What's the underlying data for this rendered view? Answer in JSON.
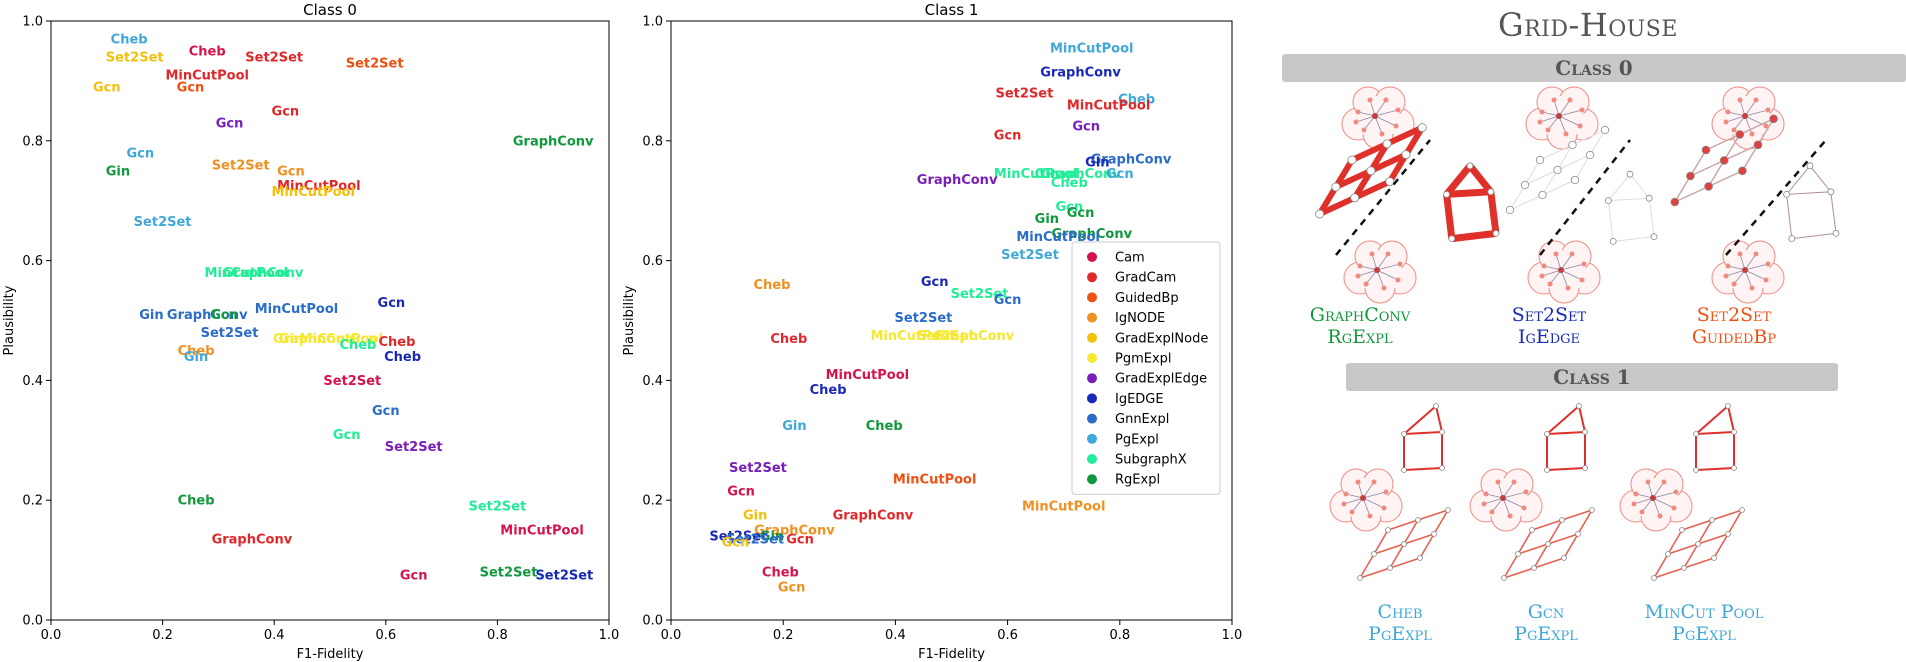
{
  "chart_data": [
    {
      "type": "scatter",
      "title": "Class 0",
      "xlabel": "F1-Fidelity",
      "ylabel": "Plausibility",
      "xlim": [
        0.0,
        1.0
      ],
      "ylim": [
        0.0,
        1.0
      ],
      "xticks": [
        "0.0",
        "0.2",
        "0.4",
        "0.6",
        "0.8",
        "1.0"
      ],
      "yticks": [
        "0.0",
        "0.2",
        "0.4",
        "0.6",
        "0.8",
        "1.0"
      ],
      "marker": "text-label",
      "points": [
        {
          "label": "Cheb",
          "method": "PgExpl",
          "x": 0.14,
          "y": 0.97
        },
        {
          "label": "Set2Set",
          "method": "GradExplNode",
          "x": 0.15,
          "y": 0.94
        },
        {
          "label": "Cheb",
          "method": "Cam",
          "x": 0.28,
          "y": 0.95
        },
        {
          "label": "Set2Set",
          "method": "GradCam",
          "x": 0.4,
          "y": 0.94
        },
        {
          "label": "Set2Set",
          "method": "GuidedBp",
          "x": 0.58,
          "y": 0.93
        },
        {
          "label": "Gcn",
          "method": "GradExplNode",
          "x": 0.1,
          "y": 0.89
        },
        {
          "label": "MinCutPool",
          "method": "GradCam",
          "x": 0.28,
          "y": 0.91
        },
        {
          "label": "Gcn",
          "method": "GuidedBp",
          "x": 0.25,
          "y": 0.89
        },
        {
          "label": "Gcn",
          "method": "GradCam",
          "x": 0.42,
          "y": 0.85
        },
        {
          "label": "Gcn",
          "method": "GradExplEdge",
          "x": 0.32,
          "y": 0.83
        },
        {
          "label": "GraphConv",
          "method": "RgExpl",
          "x": 0.9,
          "y": 0.8
        },
        {
          "label": "Gcn",
          "method": "PgExpl",
          "x": 0.16,
          "y": 0.78
        },
        {
          "label": "Set2Set",
          "method": "IgNODE",
          "x": 0.34,
          "y": 0.76
        },
        {
          "label": "Gin",
          "method": "RgExpl",
          "x": 0.12,
          "y": 0.75
        },
        {
          "label": "Gcn",
          "method": "IgNODE",
          "x": 0.43,
          "y": 0.75
        },
        {
          "label": "MinCutPool",
          "method": "GradCam",
          "x": 0.48,
          "y": 0.725
        },
        {
          "label": "MinCutPool",
          "method": "GradExplNode",
          "x": 0.47,
          "y": 0.715
        },
        {
          "label": "Set2Set",
          "method": "PgExpl",
          "x": 0.2,
          "y": 0.665
        },
        {
          "label": "MinCutPool",
          "method": "SubgraphX",
          "x": 0.35,
          "y": 0.58
        },
        {
          "label": "GraphConv",
          "method": "SubgraphX",
          "x": 0.38,
          "y": 0.58
        },
        {
          "label": "Gcn",
          "method": "IgEDGE",
          "x": 0.61,
          "y": 0.53
        },
        {
          "label": "MinCutPool",
          "method": "GnnExpl",
          "x": 0.44,
          "y": 0.52
        },
        {
          "label": "Gin",
          "method": "GnnExpl",
          "x": 0.18,
          "y": 0.51
        },
        {
          "label": "GraphConv",
          "method": "GnnExpl",
          "x": 0.28,
          "y": 0.51
        },
        {
          "label": "Gcn",
          "method": "RgExpl",
          "x": 0.31,
          "y": 0.51
        },
        {
          "label": "Set2Set",
          "method": "GnnExpl",
          "x": 0.32,
          "y": 0.48
        },
        {
          "label": "Gin",
          "method": "PgmExpl",
          "x": 0.43,
          "y": 0.47
        },
        {
          "label": "GraphConv",
          "method": "PgmExpl",
          "x": 0.47,
          "y": 0.47
        },
        {
          "label": "MinCutPool",
          "method": "PgmExpl",
          "x": 0.52,
          "y": 0.47
        },
        {
          "label": "Gcn",
          "method": "PgmExpl",
          "x": 0.56,
          "y": 0.47
        },
        {
          "label": "Cheb",
          "method": "GradCam",
          "x": 0.62,
          "y": 0.465
        },
        {
          "label": "Cheb",
          "method": "SubgraphX",
          "x": 0.55,
          "y": 0.46
        },
        {
          "label": "Cheb",
          "method": "IgNODE",
          "x": 0.26,
          "y": 0.45
        },
        {
          "label": "Gin",
          "method": "PgExpl",
          "x": 0.26,
          "y": 0.44
        },
        {
          "label": "Cheb",
          "method": "IgEDGE",
          "x": 0.63,
          "y": 0.44
        },
        {
          "label": "Set2Set",
          "method": "Cam",
          "x": 0.54,
          "y": 0.4
        },
        {
          "label": "Gcn",
          "method": "GnnExpl",
          "x": 0.6,
          "y": 0.35
        },
        {
          "label": "Gcn",
          "method": "SubgraphX",
          "x": 0.53,
          "y": 0.31
        },
        {
          "label": "Set2Set",
          "method": "GradExplEdge",
          "x": 0.65,
          "y": 0.29
        },
        {
          "label": "Cheb",
          "method": "RgExpl",
          "x": 0.26,
          "y": 0.2
        },
        {
          "label": "Set2Set",
          "method": "SubgraphX",
          "x": 0.8,
          "y": 0.19
        },
        {
          "label": "GraphConv",
          "method": "GradCam",
          "x": 0.36,
          "y": 0.135
        },
        {
          "label": "MinCutPool",
          "method": "Cam",
          "x": 0.88,
          "y": 0.15
        },
        {
          "label": "Gcn",
          "method": "Cam",
          "x": 0.65,
          "y": 0.075
        },
        {
          "label": "Set2Set",
          "method": "RgExpl",
          "x": 0.82,
          "y": 0.08
        },
        {
          "label": "Set2Set",
          "method": "IgEDGE",
          "x": 0.92,
          "y": 0.075
        }
      ]
    },
    {
      "type": "scatter",
      "title": "Class 1",
      "xlabel": "F1-Fidelity",
      "ylabel": "Plausibility",
      "xlim": [
        0.0,
        1.0
      ],
      "ylim": [
        0.0,
        1.0
      ],
      "xticks": [
        "0.0",
        "0.2",
        "0.4",
        "0.6",
        "0.8",
        "1.0"
      ],
      "yticks": [
        "0.0",
        "0.2",
        "0.4",
        "0.6",
        "0.8",
        "1.0"
      ],
      "marker": "text-label",
      "legend": "center-right",
      "legend_entries": [
        "Cam",
        "GradCam",
        "GuidedBp",
        "IgNODE",
        "GradExplNode",
        "PgmExpl",
        "GradExplEdge",
        "IgEDGE",
        "GnnExpl",
        "PgExpl",
        "SubgraphX",
        "RgExpl"
      ],
      "points": [
        {
          "label": "MinCutPool",
          "method": "PgExpl",
          "x": 0.75,
          "y": 0.955
        },
        {
          "label": "GraphConv",
          "method": "IgEDGE",
          "x": 0.73,
          "y": 0.915
        },
        {
          "label": "Set2Set",
          "method": "GradCam",
          "x": 0.63,
          "y": 0.88
        },
        {
          "label": "Cheb",
          "method": "PgExpl",
          "x": 0.83,
          "y": 0.87
        },
        {
          "label": "MinCutPool",
          "method": "GradCam",
          "x": 0.78,
          "y": 0.86
        },
        {
          "label": "Gcn",
          "method": "GradExplEdge",
          "x": 0.74,
          "y": 0.825
        },
        {
          "label": "Gcn",
          "method": "GradCam",
          "x": 0.6,
          "y": 0.81
        },
        {
          "label": "GraphConv",
          "method": "GnnExpl",
          "x": 0.82,
          "y": 0.77
        },
        {
          "label": "Gin",
          "method": "IgEDGE",
          "x": 0.76,
          "y": 0.765
        },
        {
          "label": "MinCutPool",
          "method": "SubgraphX",
          "x": 0.65,
          "y": 0.745
        },
        {
          "label": "Gin",
          "method": "SubgraphX",
          "x": 0.67,
          "y": 0.745
        },
        {
          "label": "GraphConv",
          "method": "SubgraphX",
          "x": 0.73,
          "y": 0.745
        },
        {
          "label": "Gcn",
          "method": "PgExpl",
          "x": 0.8,
          "y": 0.745
        },
        {
          "label": "GraphConv",
          "method": "GradExplEdge",
          "x": 0.51,
          "y": 0.735
        },
        {
          "label": "Cheb",
          "method": "SubgraphX",
          "x": 0.71,
          "y": 0.73
        },
        {
          "label": "Gcn",
          "method": "SubgraphX",
          "x": 0.71,
          "y": 0.69
        },
        {
          "label": "Gcn",
          "method": "RgExpl",
          "x": 0.73,
          "y": 0.68
        },
        {
          "label": "Gin",
          "method": "RgExpl",
          "x": 0.67,
          "y": 0.67
        },
        {
          "label": "GraphConv",
          "method": "RgExpl",
          "x": 0.75,
          "y": 0.645
        },
        {
          "label": "MinCutPool",
          "method": "GnnExpl",
          "x": 0.69,
          "y": 0.64
        },
        {
          "label": "Set2Set",
          "method": "PgExpl",
          "x": 0.64,
          "y": 0.61
        },
        {
          "label": "Cheb",
          "method": "IgNODE",
          "x": 0.18,
          "y": 0.56
        },
        {
          "label": "Gcn",
          "method": "IgEDGE",
          "x": 0.47,
          "y": 0.565
        },
        {
          "label": "Set2Set",
          "method": "SubgraphX",
          "x": 0.55,
          "y": 0.545
        },
        {
          "label": "Gcn",
          "method": "GnnExpl",
          "x": 0.6,
          "y": 0.535
        },
        {
          "label": "Set2Set",
          "method": "GnnExpl",
          "x": 0.45,
          "y": 0.505
        },
        {
          "label": "MinCutPool",
          "method": "PgmExpl",
          "x": 0.43,
          "y": 0.475
        },
        {
          "label": "Set2Set",
          "method": "PgmExpl",
          "x": 0.49,
          "y": 0.475
        },
        {
          "label": "GraphConv",
          "method": "PgmExpl",
          "x": 0.54,
          "y": 0.475
        },
        {
          "label": "Cheb",
          "method": "GradCam",
          "x": 0.21,
          "y": 0.47
        },
        {
          "label": "MinCutPool",
          "method": "Cam",
          "x": 0.35,
          "y": 0.41
        },
        {
          "label": "Cheb",
          "method": "IgEDGE",
          "x": 0.28,
          "y": 0.385
        },
        {
          "label": "Gin",
          "method": "PgExpl",
          "x": 0.22,
          "y": 0.325
        },
        {
          "label": "Cheb",
          "method": "RgExpl",
          "x": 0.38,
          "y": 0.325
        },
        {
          "label": "Set2Set",
          "method": "GradExplEdge",
          "x": 0.155,
          "y": 0.255
        },
        {
          "label": "MinCutPool",
          "method": "GuidedBp",
          "x": 0.47,
          "y": 0.235
        },
        {
          "label": "Gcn",
          "method": "Cam",
          "x": 0.125,
          "y": 0.215
        },
        {
          "label": "MinCutPool",
          "method": "IgNODE",
          "x": 0.7,
          "y": 0.19
        },
        {
          "label": "GraphConv",
          "method": "GradCam",
          "x": 0.36,
          "y": 0.175
        },
        {
          "label": "Gin",
          "method": "GradExplNode",
          "x": 0.15,
          "y": 0.175
        },
        {
          "label": "GraphConv",
          "method": "IgNODE",
          "x": 0.22,
          "y": 0.15
        },
        {
          "label": "Set2Set",
          "method": "IgEDGE",
          "x": 0.12,
          "y": 0.14
        },
        {
          "label": "Gin",
          "method": "RgExpl",
          "x": 0.18,
          "y": 0.14
        },
        {
          "label": "Set2Set",
          "method": "GnnExpl",
          "x": 0.15,
          "y": 0.135
        },
        {
          "label": "Gcn",
          "method": "GradExplNode",
          "x": 0.115,
          "y": 0.13
        },
        {
          "label": "Gcn",
          "method": "GradCam",
          "x": 0.23,
          "y": 0.135
        },
        {
          "label": "Cheb",
          "method": "Cam",
          "x": 0.195,
          "y": 0.08
        },
        {
          "label": "Gcn",
          "method": "IgNODE",
          "x": 0.215,
          "y": 0.055
        }
      ]
    }
  ],
  "method_colors": {
    "Cam": "#d6144c",
    "GradCam": "#e0282a",
    "GuidedBp": "#f05010",
    "IgNODE": "#f09020",
    "GradExplNode": "#f2c00a",
    "PgmExpl": "#f6e830",
    "GradExplEdge": "#7a20b8",
    "IgEDGE": "#1828b8",
    "GnnExpl": "#2a6cc8",
    "PgExpl": "#40a8d8",
    "SubgraphX": "#20ee96",
    "RgExpl": "#10983c"
  },
  "panel": {
    "title": "Grid-House",
    "class0_label": "Class 0",
    "class1_label": "Class 1",
    "class0_captions": [
      {
        "model": "GraphConv",
        "method": "RgExpl",
        "color": "#10983c"
      },
      {
        "model": "Set2Set",
        "method": "IgEdge",
        "color": "#1828b8"
      },
      {
        "model": "Set2Set",
        "method": "GuidedBp",
        "color": "#f05010"
      }
    ],
    "class1_captions": [
      {
        "model": "Cheb",
        "method": "PgExpl",
        "color": "#40a8d8"
      },
      {
        "model": "Gcn",
        "method": "PgExpl",
        "color": "#40a8d8"
      },
      {
        "model": "MinCut Pool",
        "method": "PgExpl",
        "color": "#40a8d8"
      }
    ]
  }
}
